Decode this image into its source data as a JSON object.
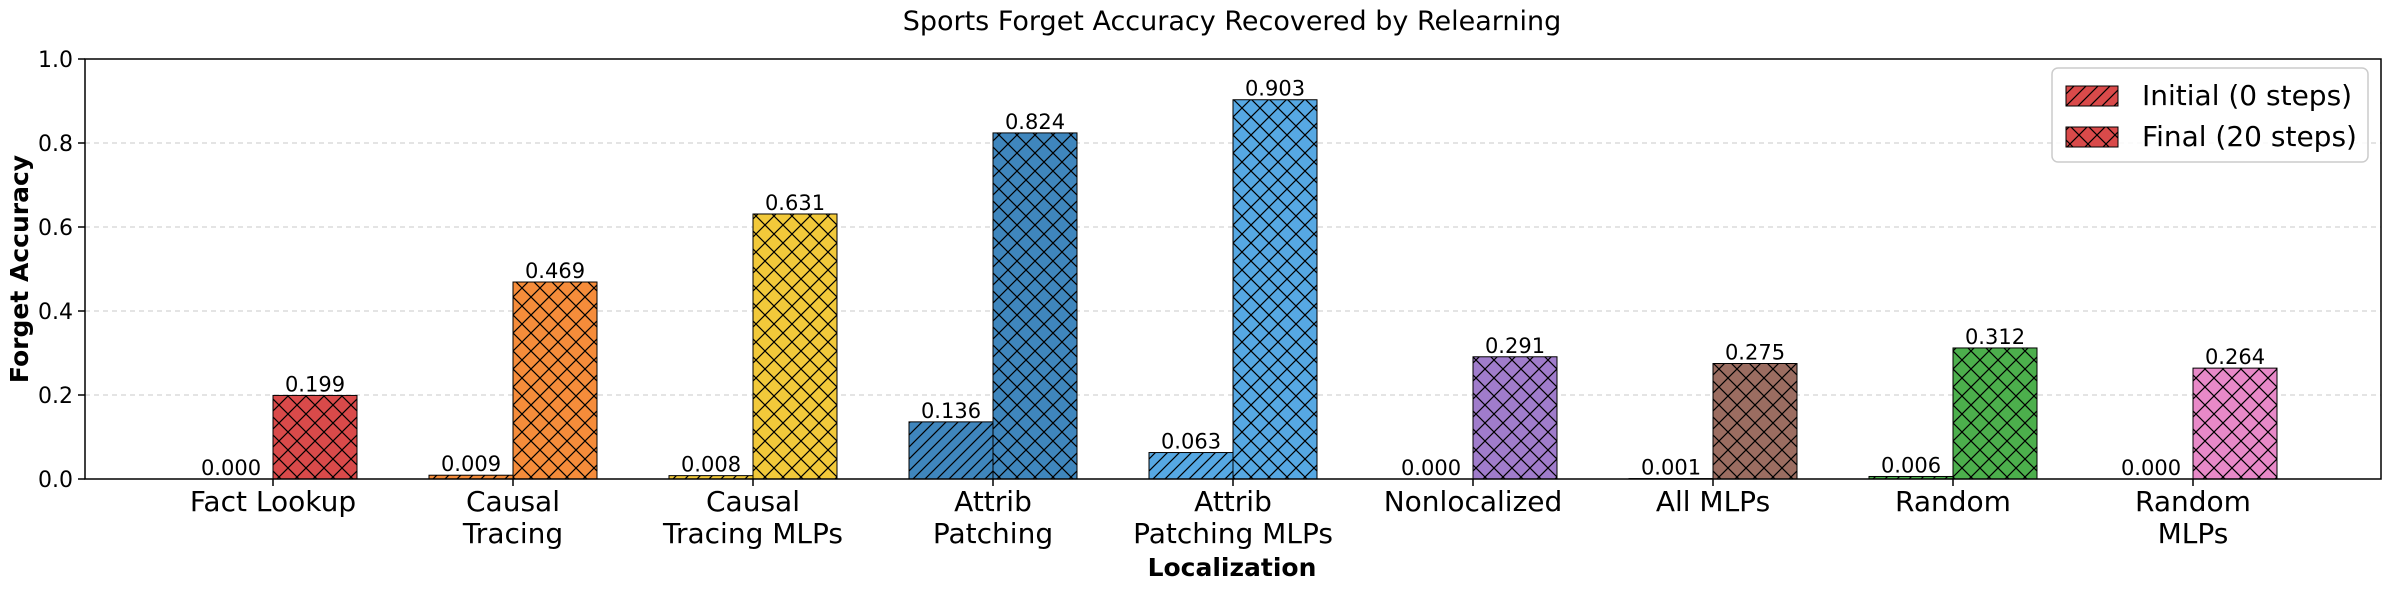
{
  "chart_data": {
    "type": "bar",
    "title": "Sports Forget Accuracy Recovered by Relearning",
    "xlabel": "Localization",
    "ylabel": "Forget Accuracy",
    "ylim": [
      0,
      1.0
    ],
    "yticks": [
      "0.0",
      "0.2",
      "0.4",
      "0.6",
      "0.8",
      "1.0"
    ],
    "grid": "y-dashed",
    "legend_position": "top-right",
    "categories": [
      [
        "Fact Lookup"
      ],
      [
        "Causal",
        "Tracing"
      ],
      [
        "Causal",
        "Tracing MLPs"
      ],
      [
        "Attrib",
        "Patching"
      ],
      [
        "Attrib",
        "Patching MLPs"
      ],
      [
        "Nonlocalized"
      ],
      [
        "All MLPs"
      ],
      [
        "Random"
      ],
      [
        "Random",
        "MLPs"
      ]
    ],
    "category_colors": [
      "#d94a4a",
      "#f58c3a",
      "#f2c93a",
      "#3f86bd",
      "#56a8e3",
      "#a07ccb",
      "#9b6d61",
      "#4caf4c",
      "#e889c8"
    ],
    "series": [
      {
        "name": "Initial (0 steps)",
        "hatch": "diagonal",
        "values": [
          0.0,
          0.009,
          0.008,
          0.136,
          0.063,
          0.0,
          0.001,
          0.006,
          0.0
        ],
        "labels": [
          "0.000",
          "0.009",
          "0.008",
          "0.136",
          "0.063",
          "0.000",
          "0.001",
          "0.006",
          "0.000"
        ]
      },
      {
        "name": "Final (20 steps)",
        "hatch": "crosshatch",
        "values": [
          0.199,
          0.469,
          0.631,
          0.824,
          0.903,
          0.291,
          0.275,
          0.312,
          0.264
        ],
        "labels": [
          "0.199",
          "0.469",
          "0.631",
          "0.824",
          "0.903",
          "0.291",
          "0.275",
          "0.312",
          "0.264"
        ]
      }
    ],
    "legend_color": "#d94a4a"
  }
}
